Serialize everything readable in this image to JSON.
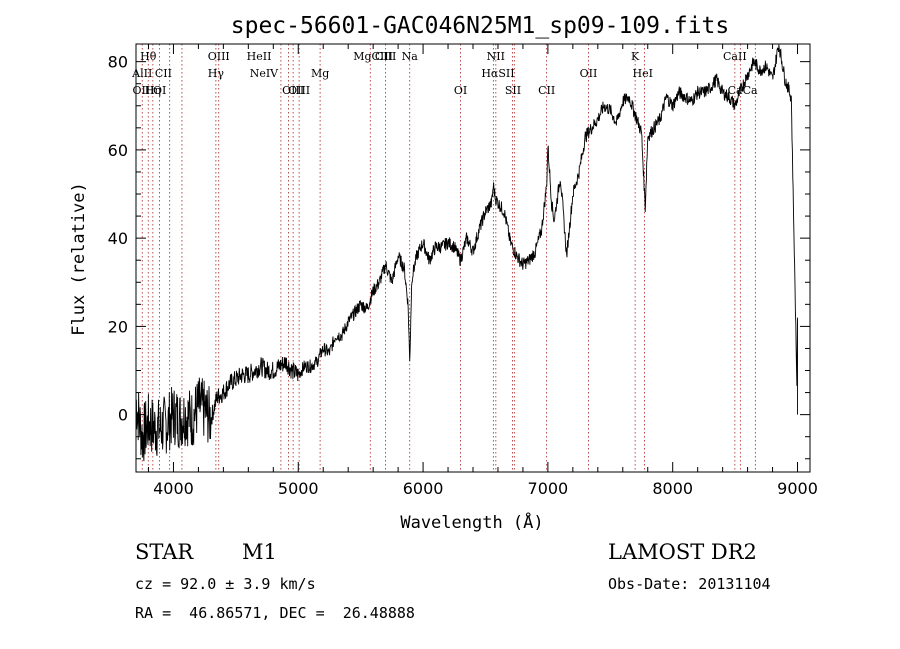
{
  "chart_data": {
    "type": "line",
    "title": "spec-56601-GAC046N25M1_sp09-109.fits",
    "xlabel": "Wavelength (Å)",
    "ylabel": "Flux (relative)",
    "xlim": [
      3700,
      9100
    ],
    "ylim": [
      -13,
      84
    ],
    "x_ticks": [
      4000,
      5000,
      6000,
      7000,
      8000,
      9000
    ],
    "y_ticks": [
      0,
      20,
      40,
      60,
      80
    ],
    "series": [
      {
        "name": "flux",
        "color": "#000000",
        "x": [
          3700,
          3750,
          3800,
          3850,
          3900,
          3950,
          4000,
          4050,
          4100,
          4150,
          4200,
          4250,
          4300,
          4350,
          4400,
          4450,
          4500,
          4550,
          4600,
          4650,
          4700,
          4750,
          4800,
          4850,
          4900,
          4950,
          5000,
          5050,
          5100,
          5150,
          5200,
          5250,
          5300,
          5350,
          5400,
          5450,
          5500,
          5550,
          5600,
          5650,
          5700,
          5750,
          5800,
          5850,
          5880,
          5893,
          5910,
          5950,
          6000,
          6050,
          6100,
          6150,
          6200,
          6250,
          6300,
          6350,
          6400,
          6450,
          6500,
          6550,
          6563,
          6580,
          6600,
          6650,
          6700,
          6750,
          6800,
          6850,
          6900,
          6950,
          6990,
          7000,
          7030,
          7050,
          7100,
          7150,
          7200,
          7250,
          7300,
          7350,
          7400,
          7450,
          7500,
          7550,
          7600,
          7650,
          7700,
          7750,
          7780,
          7800,
          7850,
          7900,
          7950,
          8000,
          8050,
          8100,
          8150,
          8200,
          8250,
          8300,
          8350,
          8400,
          8450,
          8500,
          8550,
          8600,
          8650,
          8700,
          8750,
          8800,
          8850,
          8900,
          8950,
          9000
        ],
        "values": [
          3,
          -5,
          -2,
          -3,
          -3,
          -2,
          0,
          -1,
          0,
          -1,
          2,
          1,
          -1,
          4,
          5,
          7,
          8,
          9,
          9,
          10,
          11,
          10,
          10,
          11,
          12,
          10,
          9,
          11,
          11,
          12,
          15,
          14,
          18,
          18,
          21,
          23,
          25,
          24,
          28,
          30,
          34,
          30,
          36,
          33,
          25,
          12,
          31,
          36,
          39,
          35,
          38,
          38,
          39,
          38,
          35,
          40,
          37,
          42,
          46,
          48,
          52,
          49,
          48,
          46,
          39,
          36,
          34,
          35,
          37,
          42,
          52,
          61,
          48,
          44,
          54,
          36,
          50,
          55,
          63,
          65,
          67,
          70,
          69,
          66,
          71,
          72,
          68,
          64,
          47,
          63,
          65,
          67,
          72,
          70,
          73,
          72,
          71,
          73,
          73,
          74,
          76,
          73,
          72,
          70,
          74,
          77,
          80,
          78,
          79,
          76,
          84,
          76,
          72,
          0
        ],
        "noise_seed": 7
      }
    ],
    "spectral_lines": [
      {
        "label": "Hθ",
        "x": 3798,
        "row": 0
      },
      {
        "label": "AlII",
        "x": 3750,
        "row": 1
      },
      {
        "label": "CII",
        "x": 3920,
        "row": 1
      },
      {
        "label": "OIII",
        "x": 3760,
        "row": 2
      },
      {
        "label": "Hη",
        "x": 3835,
        "row": 2
      },
      {
        "label": "OI",
        "x": 3890,
        "row": 2
      },
      {
        "label": "OIII",
        "x": 4363,
        "row": 0
      },
      {
        "label": "Hγ",
        "x": 4340,
        "row": 1
      },
      {
        "label": "HeII",
        "x": 4686,
        "row": 0
      },
      {
        "label": "NeIV",
        "x": 4725,
        "row": 1
      },
      {
        "label": "OIII",
        "x": 4959,
        "row": 2
      },
      {
        "label": "OIII",
        "x": 5007,
        "row": 2
      },
      {
        "label": "Mg",
        "x": 5175,
        "row": 1
      },
      {
        "label": "MgCIII",
        "x": 5600,
        "row": 0
      },
      {
        "label": "CIII",
        "x": 5700,
        "row": 0
      },
      {
        "label": "Na",
        "x": 5893,
        "row": 0
      },
      {
        "label": "NII",
        "x": 6583,
        "row": 0
      },
      {
        "label": "HαSII",
        "x": 6600,
        "row": 1
      },
      {
        "label": "OI",
        "x": 6300,
        "row": 2
      },
      {
        "label": "SII",
        "x": 6720,
        "row": 2
      },
      {
        "label": "CII",
        "x": 6990,
        "row": 2
      },
      {
        "label": "OII",
        "x": 7325,
        "row": 1
      },
      {
        "label": "K",
        "x": 7699,
        "row": 0
      },
      {
        "label": "HeI",
        "x": 7760,
        "row": 1
      },
      {
        "label": "CaII",
        "x": 8498,
        "row": 0
      },
      {
        "label": "CaCa",
        "x": 8560,
        "row": 2
      }
    ],
    "line_marker_x": [
      3750,
      3798,
      3835,
      3889,
      3970,
      4068,
      4340,
      4363,
      4861,
      4922,
      4959,
      5007,
      5175,
      5577,
      5700,
      5893,
      6300,
      6563,
      6583,
      6716,
      6731,
      6990,
      7325,
      7699,
      7774,
      8498,
      8542,
      8662
    ],
    "line_marker_color": "#b22222"
  },
  "info": {
    "object_type": "STAR",
    "subclass": "M1",
    "survey": "LAMOST DR2",
    "cz": "cz = 92.0 ± 3.9 km/s",
    "obs_date": "Obs-Date: 20131104",
    "coords": "RA =  46.86571, DEC =  26.48888"
  }
}
